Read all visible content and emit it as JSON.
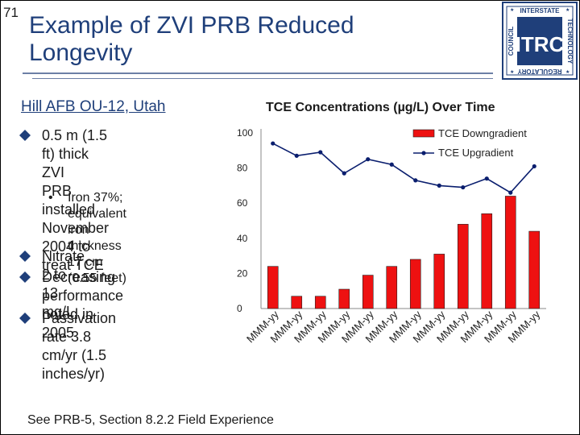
{
  "slide": {
    "number": "71"
  },
  "title": {
    "line1": "Example of ZVI PRB Reduced",
    "line2": "Longevity"
  },
  "logo": {
    "top": "INTERSTATE",
    "left": "COUNCIL",
    "right": "TECHNOLOGY",
    "bottom": "REGULATORY",
    "mark": "ITRC",
    "colors": {
      "blue": "#1f3f7a"
    }
  },
  "subtitle": "Hill AFB OU-12, Utah",
  "bullets": [
    {
      "lines": [
        "0.5 m (1.5 ft) thick ZVI",
        "PRB installed November",
        "2004 to treat TCE"
      ]
    },
    {
      "lines": [
        "Nitrate 2 to 13 mg/L"
      ]
    },
    {
      "lines": [
        "Decreasing performance",
        "noted in 2005"
      ]
    },
    {
      "lines": [
        "Passivation rate 3.8",
        "cm/yr (1.5 inches/yr)"
      ]
    }
  ],
  "sub_bullet": {
    "lines": [
      "Iron 37%; equivalent",
      "iron thickness 17 cm",
      "(0.55 feet)"
    ]
  },
  "footer": "See PRB-5, Section 8.2.2  Field Experience",
  "colors": {
    "bar": "#ee1111",
    "line": "#0a1e6e"
  },
  "chart_data": {
    "type": "bar",
    "title": "TCE Concentrations (µg/L) Over Time",
    "categories": [
      "MMM-yy",
      "MMM-yy",
      "MMM-yy",
      "MMM-yy",
      "MMM-yy",
      "MMM-yy",
      "MMM-yy",
      "MMM-yy",
      "MMM-yy",
      "MMM-yy",
      "MMM-yy",
      "MMM-yy"
    ],
    "ylim": [
      0,
      100
    ],
    "yticks": [
      "0",
      "20",
      "40",
      "60",
      "80",
      "100"
    ],
    "series": [
      {
        "name": "TCE Downgradient",
        "type": "bar",
        "values": [
          24,
          7,
          7,
          11,
          19,
          24,
          28,
          31,
          48,
          54,
          64,
          44
        ]
      },
      {
        "name": "TCE Upgradient",
        "type": "line",
        "values": [
          94,
          87,
          89,
          77,
          85,
          82,
          73,
          70,
          69,
          74,
          66,
          81
        ]
      }
    ]
  }
}
